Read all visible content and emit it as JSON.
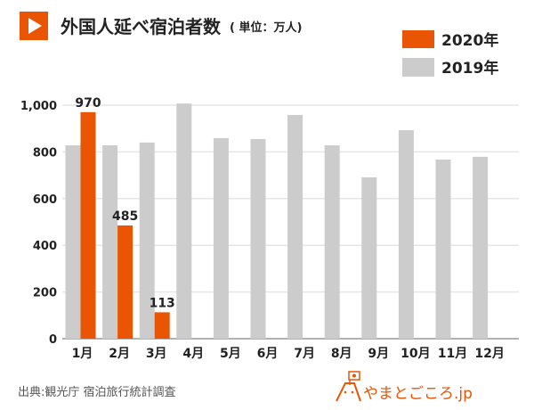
{
  "header": {
    "icon": "play-icon",
    "title": "外国人延べ宿泊者数",
    "unit": "( 単位：万人)"
  },
  "colors": {
    "2020": "#ea5504",
    "2019": "#cccccc",
    "accent": "#ea5504"
  },
  "chart_data": {
    "type": "bar",
    "title": "外国人延べ宿泊者数",
    "unit_label": "( 単位：万人)",
    "categories": [
      "1月",
      "2月",
      "3月",
      "4月",
      "5月",
      "6月",
      "7月",
      "8月",
      "9月",
      "10月",
      "11月",
      "12月"
    ],
    "series": [
      {
        "name": "2019年",
        "values": [
          828,
          828,
          840,
          1007,
          859,
          855,
          958,
          828,
          691,
          893,
          767,
          779
        ]
      },
      {
        "name": "2020年",
        "values": [
          970,
          485,
          113,
          null,
          null,
          null,
          null,
          null,
          null,
          null,
          null,
          null
        ],
        "data_labels": [
          "970",
          "485",
          "113"
        ]
      }
    ],
    "ylim": [
      0,
      1000
    ],
    "yticks": [
      "0",
      "200",
      "400",
      "600",
      "800",
      "1,000"
    ],
    "ytick_values": [
      0,
      200,
      400,
      600,
      800,
      1000
    ],
    "grid": true,
    "legend": "top-right"
  },
  "footer": {
    "source": "出典:観光庁 宿泊旅行統計調査",
    "logo_text": "やまとごころ.jp",
    "logo_icon": "mountain-mascot-icon"
  }
}
